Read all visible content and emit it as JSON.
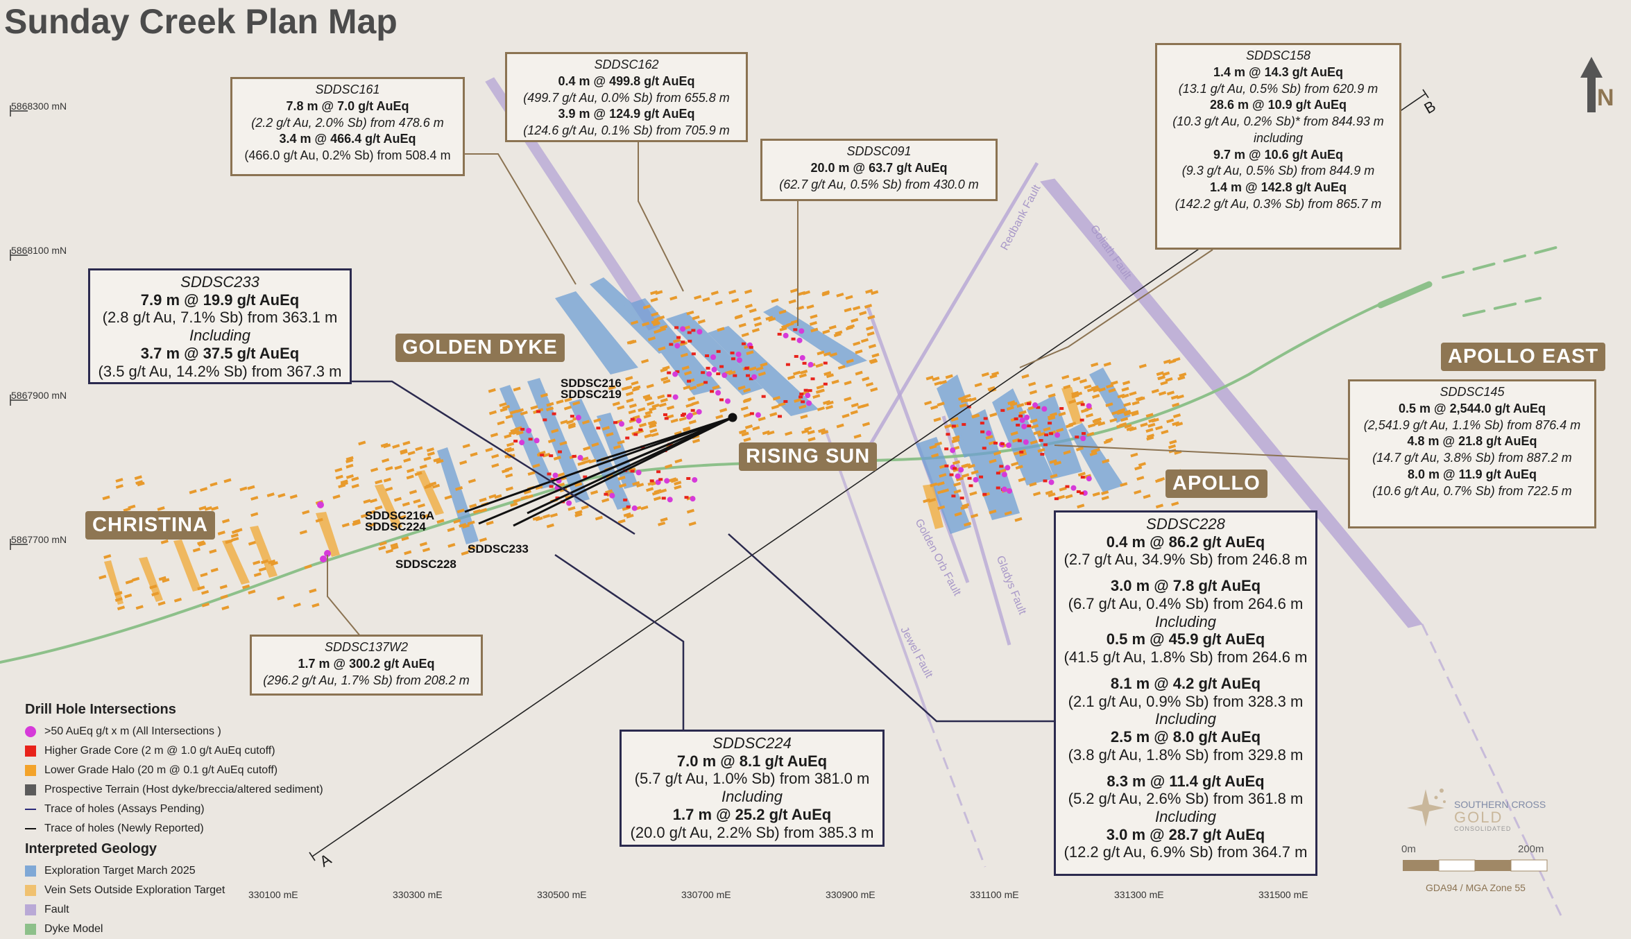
{
  "map_title": "Sunday Creek Plan Map",
  "north_label": "N",
  "northings": [
    "5868300 mN",
    "5868100 mN",
    "5867900 mN",
    "5867700 mN"
  ],
  "eastings": [
    "330100 mE",
    "330300 mE",
    "330500 mE",
    "330700 mE",
    "330900 mE",
    "331100 mE",
    "331300 mE",
    "331500 mE"
  ],
  "section_labels": {
    "a": "A",
    "b": "B"
  },
  "regions": {
    "christina": "CHRISTINA",
    "golden_dyke": "GOLDEN DYKE",
    "rising_sun": "RISING SUN",
    "apollo": "APOLLO",
    "apollo_east": "APOLLO EAST"
  },
  "faults": {
    "redbank": "Redbank Fault",
    "goliath": "Goliath Fault",
    "golden_orb": "Golden Orb Fault",
    "gladys": "Gladys Fault",
    "jewel": "Jewel Fault"
  },
  "hole_labels": {
    "sddsc216": "SDDSC216",
    "sddsc219": "SDDSC219",
    "sddsc216a": "SDDSC216A",
    "sddsc224": "SDDSC224",
    "sddsc233": "SDDSC233",
    "sddsc228": "SDDSC228"
  },
  "callouts": {
    "sddsc161": {
      "hole": "SDDSC161",
      "lines": [
        {
          "t": "7.8 m @ 7.0 g/t AuEq",
          "s": "b"
        },
        {
          "t": "(2.2 g/t Au, 2.0% Sb) from 478.6 m",
          "s": "i"
        },
        {
          "t": "3.4 m @ 466.4 g/t AuEq",
          "s": "b"
        },
        {
          "t": "(466.0 g/t Au, 0.2% Sb) from 508.4 m",
          "s": "n"
        }
      ]
    },
    "sddsc162": {
      "hole": "SDDSC162",
      "lines": [
        {
          "t": "0.4 m @ 499.8 g/t AuEq",
          "s": "b"
        },
        {
          "t": "(499.7 g/t Au, 0.0% Sb) from 655.8 m",
          "s": "i"
        },
        {
          "t": "3.9 m @ 124.9 g/t AuEq",
          "s": "b"
        },
        {
          "t": "(124.6 g/t Au, 0.1% Sb) from 705.9 m",
          "s": "i"
        }
      ]
    },
    "sddsc091": {
      "hole": "SDDSC091",
      "lines": [
        {
          "t": "20.0 m @ 63.7 g/t AuEq",
          "s": "b"
        },
        {
          "t": "(62.7 g/t Au, 0.5% Sb) from 430.0 m",
          "s": "i"
        }
      ]
    },
    "sddsc158": {
      "hole": "SDDSC158",
      "lines": [
        {
          "t": "1.4 m @ 14.3 g/t AuEq",
          "s": "b"
        },
        {
          "t": "(13.1 g/t Au, 0.5% Sb) from 620.9 m",
          "s": "i"
        },
        {
          "t": "28.6 m @ 10.9 g/t AuEq",
          "s": "b"
        },
        {
          "t": "(10.3 g/t Au, 0.2% Sb)* from 844.93 m",
          "s": "i"
        },
        {
          "t": "including",
          "s": "i"
        },
        {
          "t": "9.7 m @ 10.6 g/t AuEq",
          "s": "b"
        },
        {
          "t": "(9.3 g/t Au, 0.5% Sb) from 844.9 m",
          "s": "i"
        },
        {
          "t": "1.4 m @ 142.8 g/t AuEq",
          "s": "b"
        },
        {
          "t": "(142.2 g/t Au, 0.3% Sb) from 865.7 m",
          "s": "i"
        }
      ]
    },
    "sddsc233": {
      "hole": "SDDSC233",
      "lines": [
        {
          "t": "7.9 m @ 19.9 g/t AuEq",
          "s": "b"
        },
        {
          "t": "(2.8 g/t Au, 7.1% Sb) from 363.1 m",
          "s": "n"
        },
        {
          "t": "Including",
          "s": "i"
        },
        {
          "t": "3.7 m @ 37.5 g/t AuEq",
          "s": "b"
        },
        {
          "t": "(3.5 g/t Au, 14.2% Sb) from 367.3 m",
          "s": "n"
        }
      ]
    },
    "sddsc145": {
      "hole": "SDDSC145",
      "lines": [
        {
          "t": "0.5 m @ 2,544.0 g/t AuEq",
          "s": "b"
        },
        {
          "t": "(2,541.9 g/t Au, 1.1% Sb) from 876.4 m",
          "s": "i"
        },
        {
          "t": "4.8 m @ 21.8 g/t AuEq",
          "s": "b"
        },
        {
          "t": "(14.7 g/t Au, 3.8% Sb) from 887.2 m",
          "s": "i"
        },
        {
          "t": "8.0 m @ 11.9 g/t AuEq",
          "s": "b"
        },
        {
          "t": "(10.6 g/t Au, 0.7% Sb) from 722.5 m",
          "s": "i"
        }
      ]
    },
    "sddsc137w2": {
      "hole": "SDDSC137W2",
      "lines": [
        {
          "t": "1.7 m @ 300.2 g/t AuEq",
          "s": "b"
        },
        {
          "t": "(296.2 g/t Au, 1.7% Sb) from 208.2 m",
          "s": "i"
        }
      ]
    },
    "sddsc224": {
      "hole": "SDDSC224",
      "lines": [
        {
          "t": "7.0 m @ 8.1 g/t AuEq",
          "s": "b"
        },
        {
          "t": "(5.7 g/t Au, 1.0% Sb) from 381.0 m",
          "s": "n"
        },
        {
          "t": "Including",
          "s": "i"
        },
        {
          "t": "1.7 m @ 25.2 g/t AuEq",
          "s": "b"
        },
        {
          "t": "(20.0 g/t Au, 2.2% Sb) from 385.3 m",
          "s": "n"
        }
      ]
    },
    "sddsc228": {
      "hole": "SDDSC228",
      "lines": [
        {
          "t": "0.4 m @ 86.2 g/t AuEq",
          "s": "b"
        },
        {
          "t": "(2.7 g/t Au, 34.9% Sb) from 246.8 m",
          "s": "n"
        },
        {
          "t": "",
          "s": "gap"
        },
        {
          "t": "3.0 m @ 7.8 g/t AuEq",
          "s": "b"
        },
        {
          "t": "(6.7 g/t Au, 0.4% Sb) from 264.6 m",
          "s": "n"
        },
        {
          "t": "Including",
          "s": "i"
        },
        {
          "t": "0.5 m @ 45.9 g/t AuEq",
          "s": "b"
        },
        {
          "t": "(41.5 g/t Au, 1.8% Sb) from 264.6 m",
          "s": "n"
        },
        {
          "t": "",
          "s": "gap"
        },
        {
          "t": "8.1 m @ 4.2 g/t AuEq",
          "s": "b"
        },
        {
          "t": "(2.1 g/t Au, 0.9% Sb) from 328.3 m",
          "s": "n"
        },
        {
          "t": "Including",
          "s": "i"
        },
        {
          "t": "2.5 m @ 8.0 g/t AuEq",
          "s": "b"
        },
        {
          "t": "(3.8 g/t Au, 1.8% Sb) from 329.8 m",
          "s": "n"
        },
        {
          "t": "",
          "s": "gap"
        },
        {
          "t": "8.3 m @ 11.4 g/t AuEq",
          "s": "b"
        },
        {
          "t": "(5.2 g/t Au, 2.6% Sb) from 361.8 m",
          "s": "n"
        },
        {
          "t": "Including",
          "s": "i"
        },
        {
          "t": "3.0 m @ 28.7 g/t AuEq",
          "s": "b"
        },
        {
          "t": "(12.2 g/t Au, 6.9% Sb) from 364.7 m",
          "s": "n"
        }
      ]
    }
  },
  "legend": {
    "drill_heading": "Drill Hole Intersections",
    "drill_items": [
      {
        "label": ">50 AuEq g/t x m (All Intersections )",
        "color": "#d63ad9",
        "shape": "circle"
      },
      {
        "label": "Higher Grade Core (2 m @ 1.0 g/t AuEq cutoff)",
        "color": "#e8231b",
        "shape": "square"
      },
      {
        "label": "Lower Grade Halo (20 m @ 0.1 g/t AuEq cutoff)",
        "color": "#f3a32a",
        "shape": "square"
      },
      {
        "label": "Prospective Terrain (Host dyke/breccia/altered sediment)",
        "color": "#5b5b5b",
        "shape": "square"
      },
      {
        "label": "Trace of holes (Assays Pending)",
        "color": "#2b2a7a",
        "shape": "line"
      },
      {
        "label": "Trace of holes (Newly Reported)",
        "color": "#111111",
        "shape": "line"
      }
    ],
    "geology_heading": "Interpreted Geology",
    "geology_items": [
      {
        "label": "Exploration Target March 2025",
        "color": "#7fa8d6",
        "shape": "square"
      },
      {
        "label": "Vein Sets Outside Exploration Target",
        "color": "#f0c170",
        "shape": "square"
      },
      {
        "label": "Fault",
        "color": "#b9a9d6",
        "shape": "square"
      },
      {
        "label": "Dyke Model",
        "color": "#8dc08a",
        "shape": "square"
      }
    ]
  },
  "logo": {
    "line1": "SOUTHERN CROSS",
    "line2": "GOLD",
    "line3": "CONSOLIDATED"
  },
  "scale": {
    "start": "0m",
    "end": "200m",
    "projection": "GDA94 / MGA Zone 55"
  },
  "colors": {
    "callout_border": "#8b7352",
    "callout_border_navy": "#2b2a4e",
    "region_label": "#8e7653",
    "dyke": "#8dc08a",
    "fault": "#b9a9d6",
    "target": "#6f9fd4",
    "vein": "#f0b04a",
    "magenta": "#d63ad9",
    "red": "#e8231b"
  }
}
